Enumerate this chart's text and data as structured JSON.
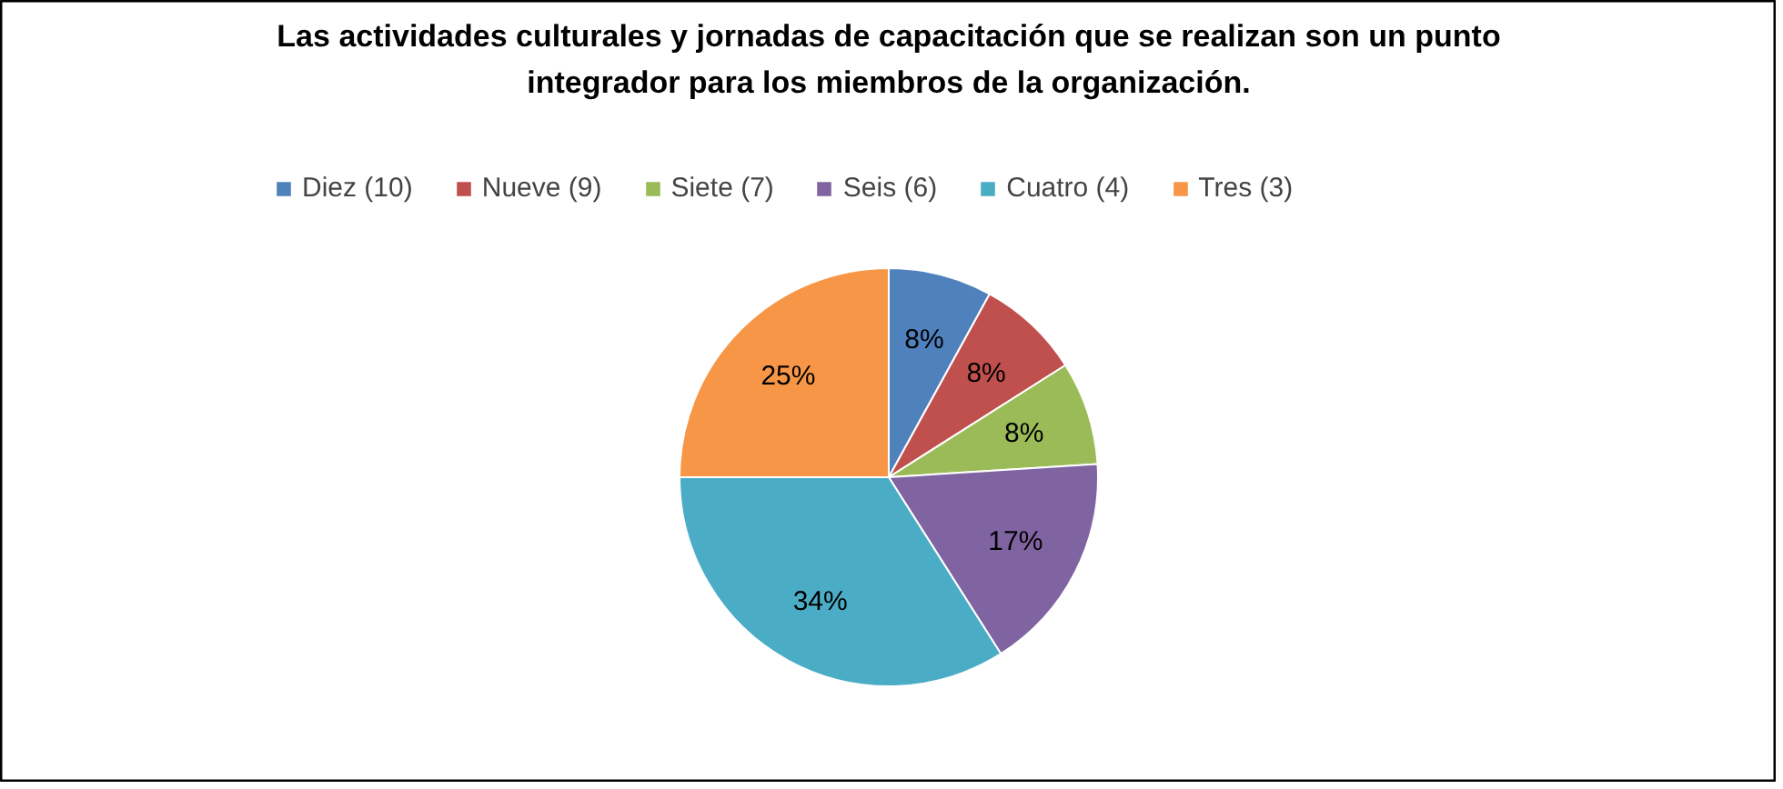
{
  "chart_data": {
    "type": "pie",
    "title": "Las actividades culturales y jornadas de capacitación que se realizan son un punto integrador para los miembros de la organización.",
    "categories": [
      "Diez (10)",
      "Nueve (9)",
      "Siete (7)",
      "Seis (6)",
      "Cuatro (4)",
      "Tres (3)"
    ],
    "values": [
      8,
      8,
      8,
      17,
      34,
      25
    ],
    "colors": [
      "#4f81bd",
      "#c0504d",
      "#9bbb59",
      "#8064a2",
      "#4bacc6",
      "#f79646"
    ],
    "value_labels": [
      "8%",
      "8%",
      "8%",
      "17%",
      "34%",
      "25%"
    ],
    "legend": "top"
  }
}
